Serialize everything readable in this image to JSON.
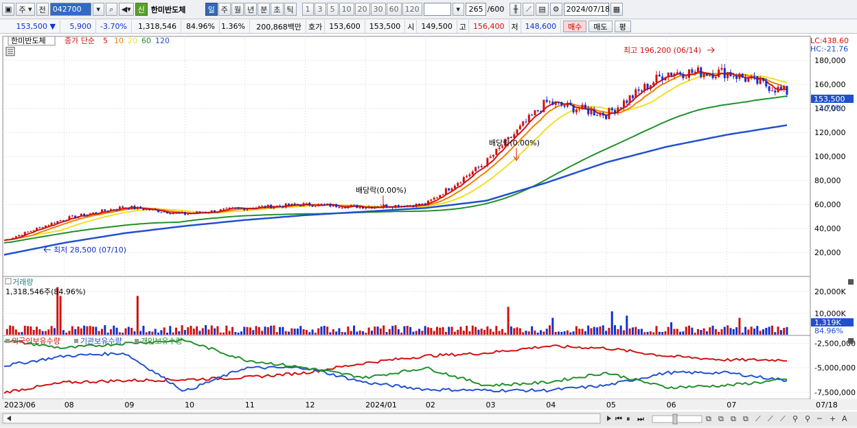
{
  "toolbar": {
    "market": "주",
    "scope": "전",
    "code": "042700",
    "stock_name": "한미반도체",
    "stock_badge": "신",
    "periods": [
      "일",
      "주",
      "월",
      "년",
      "분",
      "초",
      "틱"
    ],
    "active_period": "일",
    "intervals": [
      "1",
      "3",
      "5",
      "10",
      "20",
      "30",
      "60",
      "120"
    ],
    "count": "265",
    "count_max": "/600",
    "date": "2024/07/18"
  },
  "quote": {
    "price": "153,500",
    "change": "5,900",
    "change_pct": "-3.70%",
    "volume": "1,318,546",
    "vol_ratio": "84.96%",
    "turnover_pct": "1.36%",
    "amount": "200,868백만",
    "ask_label": "호가",
    "ask": "153,600",
    "bid": "153,500",
    "open_label": "시",
    "open": "149,500",
    "high_label": "고",
    "high": "156,400",
    "low_label": "저",
    "low": "148,600",
    "buy_label": "매수",
    "sell_label": "매도",
    "eval_label": "평"
  },
  "main_panel": {
    "name": "한미반도체",
    "ma_title": "종가 단순",
    "ma_periods": [
      {
        "label": "5",
        "color": "#d01010"
      },
      {
        "label": "10",
        "color": "#f08000"
      },
      {
        "label": "20",
        "color": "#f0e020"
      },
      {
        "label": "60",
        "color": "#20902a"
      },
      {
        "label": "120",
        "color": "#2050d0"
      }
    ],
    "lc_label": "LC:438.60",
    "hc_label": "HC:-21.76",
    "high_note": "최고 196,200 (06/14)",
    "low_note": "최저 28,500 (07/10)",
    "dividend_notes": [
      "배당락(0.00%)",
      "배당락(0.00%)"
    ],
    "current_price_tag": "153,500",
    "current_pct_tag": "-3.70%"
  },
  "volume_panel": {
    "title": "거래량",
    "current": "1,318,546주(84.96%)",
    "current_tag": "1,319K",
    "pct_tag": "84.96%"
  },
  "holding_panel": {
    "series": [
      {
        "label": "외국인보유수량",
        "color": "#d01010"
      },
      {
        "label": "기관보유수량",
        "color": "#2050d0"
      },
      {
        "label": "개인보유수량",
        "color": "#20902a"
      }
    ]
  },
  "chart_data": [
    {
      "type": "line",
      "title": "한미반도체",
      "x": [
        "2023/06",
        "08",
        "09",
        "10",
        "11",
        "12",
        "2024/01",
        "02",
        "03",
        "04",
        "05",
        "06",
        "07",
        "07/18"
      ],
      "price_close_approx": [
        30000,
        48000,
        58000,
        52000,
        57000,
        60000,
        58000,
        60000,
        95000,
        145000,
        135000,
        170000,
        170000,
        153500
      ],
      "ma120_approx": [
        18000,
        28000,
        36000,
        42000,
        47000,
        51000,
        54000,
        57000,
        63000,
        78000,
        95000,
        108000,
        118000,
        126000
      ],
      "yticks": [
        20000,
        40000,
        60000,
        80000,
        100000,
        120000,
        140000,
        160000,
        180000
      ],
      "ylim": [
        0,
        200000
      ]
    },
    {
      "type": "bar",
      "title": "거래량",
      "yticks": [
        10000,
        20000
      ],
      "ytick_labels": [
        "10,000K",
        "20,000K"
      ]
    },
    {
      "type": "line",
      "series": [
        {
          "name": "외국인보유수량",
          "values": [
            -7500000,
            -6500000,
            -6300000,
            -6200000,
            -6000000,
            -5500000,
            -4500000,
            -3800000,
            -3500000,
            -2800000,
            -3000000,
            -3800000,
            -4200000,
            -4200000
          ]
        },
        {
          "name": "기관보유수량",
          "values": [
            -4800000,
            -3800000,
            -3500000,
            -7400000,
            -5000000,
            -5000000,
            -6500000,
            -7200000,
            -7300000,
            -7300000,
            -6800000,
            -5500000,
            -5500000,
            -6300000
          ]
        },
        {
          "name": "개인보유수량",
          "values": [
            -2200000,
            -3000000,
            -2500000,
            -2200000,
            -4200000,
            -5000000,
            -6000000,
            -5000000,
            -6800000,
            -6500000,
            -5500000,
            -7000000,
            -6800000,
            -6200000
          ]
        }
      ],
      "yticks": [
        -2500000,
        -5000000,
        -7500000
      ],
      "ytick_labels": [
        "-2,500,000",
        "-5,000,000",
        "-7,500,000"
      ]
    }
  ],
  "footer": {
    "right_label": "07/18"
  }
}
